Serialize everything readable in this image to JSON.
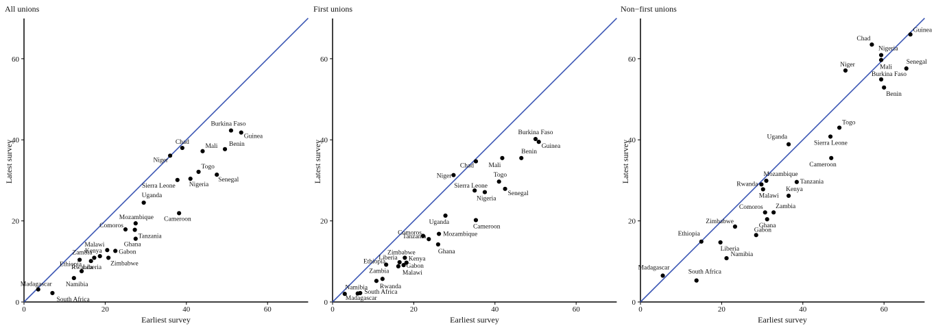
{
  "chart_data": [
    {
      "type": "scatter",
      "title": "All unions",
      "xlabel": "Earliest survey",
      "ylabel": "Latest survey",
      "xlim": [
        0,
        70
      ],
      "ylim": [
        0,
        70
      ],
      "xticks": [
        0,
        20,
        40,
        60
      ],
      "yticks": [
        0,
        20,
        40,
        60
      ],
      "grid": false,
      "reference_line": "y = x",
      "points": [
        {
          "label": "Burkina Faso",
          "x": 51,
          "y": 42.3
        },
        {
          "label": "Guinea",
          "x": 53.5,
          "y": 41.8
        },
        {
          "label": "Chad",
          "x": 39,
          "y": 38
        },
        {
          "label": "Mali",
          "x": 44,
          "y": 37.2
        },
        {
          "label": "Benin",
          "x": 49.5,
          "y": 37.7
        },
        {
          "label": "Niger",
          "x": 36,
          "y": 36.1
        },
        {
          "label": "Togo",
          "x": 43,
          "y": 32.1
        },
        {
          "label": "Sierra Leone",
          "x": 37.8,
          "y": 30.1
        },
        {
          "label": "Nigeria",
          "x": 41,
          "y": 30.4
        },
        {
          "label": "Senegal",
          "x": 47.5,
          "y": 31.4
        },
        {
          "label": "Uganda",
          "x": 29.5,
          "y": 24.5
        },
        {
          "label": "Cameroon",
          "x": 38.2,
          "y": 21.9
        },
        {
          "label": "Mozambique",
          "x": 27.5,
          "y": 19.4
        },
        {
          "label": "Comoros",
          "x": 25,
          "y": 17.9
        },
        {
          "label": "Tanzania",
          "x": 27.3,
          "y": 17.8
        },
        {
          "label": "Ghana",
          "x": 27.5,
          "y": 15.6
        },
        {
          "label": "Malawi",
          "x": 20.5,
          "y": 12.8
        },
        {
          "label": "Gabon",
          "x": 22.5,
          "y": 12.6
        },
        {
          "label": "Kenya",
          "x": 18.7,
          "y": 11.3
        },
        {
          "label": "Zambia",
          "x": 17.3,
          "y": 10.9
        },
        {
          "label": "Zimbabwe",
          "x": 20.8,
          "y": 10.9
        },
        {
          "label": "Ethiopia",
          "x": 13.7,
          "y": 10.4
        },
        {
          "label": "Liberia",
          "x": 16.5,
          "y": 10.1
        },
        {
          "label": "Rwanda",
          "x": 14.2,
          "y": 7.6
        },
        {
          "label": "Namibia",
          "x": 12.3,
          "y": 5.9
        },
        {
          "label": "Madagascar",
          "x": 3.5,
          "y": 3.1
        },
        {
          "label": "South Africa",
          "x": 7,
          "y": 2.2
        }
      ]
    },
    {
      "type": "scatter",
      "title": "First unions",
      "xlabel": "Earliest survey",
      "ylabel": "Latest survey",
      "xlim": [
        0,
        70
      ],
      "ylim": [
        0,
        70
      ],
      "xticks": [
        0,
        20,
        40,
        60
      ],
      "yticks": [
        0,
        20,
        40,
        60
      ],
      "grid": false,
      "reference_line": "y = x",
      "points": [
        {
          "label": "Burkina Faso",
          "x": 50,
          "y": 40.2
        },
        {
          "label": "Guinea",
          "x": 50.8,
          "y": 39.5
        },
        {
          "label": "Benin",
          "x": 46.5,
          "y": 35.5
        },
        {
          "label": "Chad",
          "x": 35.3,
          "y": 34.7
        },
        {
          "label": "Mali",
          "x": 41.8,
          "y": 35.5
        },
        {
          "label": "Niger",
          "x": 29.8,
          "y": 31.3
        },
        {
          "label": "Togo",
          "x": 41,
          "y": 29.7
        },
        {
          "label": "Sierra Leone",
          "x": 35,
          "y": 27.5
        },
        {
          "label": "Nigeria",
          "x": 37.5,
          "y": 27.1
        },
        {
          "label": "Senegal",
          "x": 42.5,
          "y": 27.9
        },
        {
          "label": "Uganda",
          "x": 27.8,
          "y": 21.3
        },
        {
          "label": "Cameroon",
          "x": 35.3,
          "y": 20.2
        },
        {
          "label": "Comoros",
          "x": 22.3,
          "y": 16.3
        },
        {
          "label": "Mozambique",
          "x": 26.2,
          "y": 16.8
        },
        {
          "label": "Tanzania",
          "x": 23.7,
          "y": 15.5
        },
        {
          "label": "Ghana",
          "x": 26,
          "y": 14.2
        },
        {
          "label": "Zimbabwe",
          "x": 17.8,
          "y": 10.9
        },
        {
          "label": "Liberia",
          "x": 16.5,
          "y": 9.8
        },
        {
          "label": "Kenya",
          "x": 18.2,
          "y": 9.7
        },
        {
          "label": "Ethiopia",
          "x": 13.2,
          "y": 9.2
        },
        {
          "label": "Gabon",
          "x": 17.5,
          "y": 9.1
        },
        {
          "label": "Malawi",
          "x": 16.2,
          "y": 8.8
        },
        {
          "label": "Zambia",
          "x": 12.3,
          "y": 5.7
        },
        {
          "label": "Rwanda",
          "x": 10.8,
          "y": 5.2
        },
        {
          "label": "Namibia",
          "x": 6.2,
          "y": 2.1
        },
        {
          "label": "South Africa",
          "x": 6.8,
          "y": 2.2
        },
        {
          "label": "Madagascar",
          "x": 3,
          "y": 2
        }
      ]
    },
    {
      "type": "scatter",
      "title": "Non−first unions",
      "xlabel": "Earliest survey",
      "ylabel": "Latest survey",
      "xlim": [
        0,
        70
      ],
      "ylim": [
        0,
        70
      ],
      "xticks": [
        0,
        20,
        40,
        60
      ],
      "yticks": [
        0,
        20,
        40,
        60
      ],
      "grid": false,
      "reference_line": "y = x",
      "points": [
        {
          "label": "Chad",
          "x": 57,
          "y": 63.5
        },
        {
          "label": "Guinea",
          "x": 66.5,
          "y": 66
        },
        {
          "label": "Nigeria",
          "x": 59.3,
          "y": 60.9
        },
        {
          "label": "Mali",
          "x": 59.3,
          "y": 59.7
        },
        {
          "label": "Niger",
          "x": 50.5,
          "y": 57.1
        },
        {
          "label": "Senegal",
          "x": 65.5,
          "y": 57.6
        },
        {
          "label": "Burkina Faso",
          "x": 59.3,
          "y": 54.9
        },
        {
          "label": "Benin",
          "x": 60,
          "y": 52.9
        },
        {
          "label": "Togo",
          "x": 49,
          "y": 43
        },
        {
          "label": "Sierra Leone",
          "x": 46.8,
          "y": 40.8
        },
        {
          "label": "Uganda",
          "x": 36.5,
          "y": 38.9
        },
        {
          "label": "Cameroon",
          "x": 47,
          "y": 35.5
        },
        {
          "label": "Mozambique",
          "x": 31,
          "y": 29.9
        },
        {
          "label": "Rwanda",
          "x": 29.8,
          "y": 29
        },
        {
          "label": "Tanzania",
          "x": 38.5,
          "y": 29.6
        },
        {
          "label": "Malawi",
          "x": 30.2,
          "y": 27.8
        },
        {
          "label": "Kenya",
          "x": 36.5,
          "y": 26.2
        },
        {
          "label": "Comoros",
          "x": 30.7,
          "y": 22.1
        },
        {
          "label": "Zambia",
          "x": 32.8,
          "y": 22.1
        },
        {
          "label": "Ghana",
          "x": 31.2,
          "y": 20.4
        },
        {
          "label": "Zimbabwe",
          "x": 23.3,
          "y": 18.6
        },
        {
          "label": "Gabon",
          "x": 28.5,
          "y": 16.5
        },
        {
          "label": "Ethiopia",
          "x": 15,
          "y": 14.9
        },
        {
          "label": "Liberia",
          "x": 19.7,
          "y": 14.7
        },
        {
          "label": "Namibia",
          "x": 21.2,
          "y": 10.8
        },
        {
          "label": "Madagascar",
          "x": 5.5,
          "y": 6.5
        },
        {
          "label": "South Africa",
          "x": 13.8,
          "y": 5.3
        }
      ]
    }
  ]
}
